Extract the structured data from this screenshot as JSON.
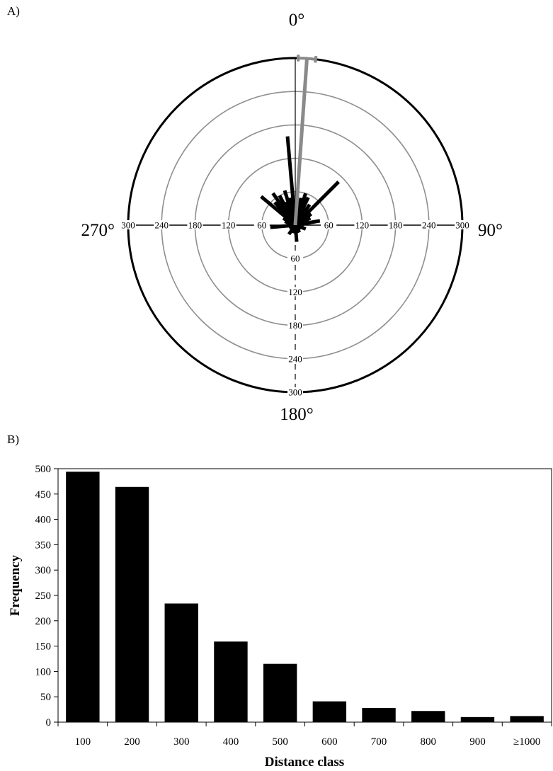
{
  "chart_data": [
    {
      "type": "polar-bar",
      "panel_label": "A)",
      "compass": {
        "north": "0°",
        "east": "90°",
        "south": "180°",
        "west": "270°"
      },
      "radial_max": 300,
      "ring_values": [
        60,
        120,
        180,
        240,
        300
      ],
      "grid": true,
      "bars": [
        {
          "angle": 355,
          "value": 160
        },
        {
          "angle": 5,
          "value": 40
        },
        {
          "angle": 12,
          "value": 50
        },
        {
          "angle": 18,
          "value": 60
        },
        {
          "angle": 25,
          "value": 55
        },
        {
          "angle": 35,
          "value": 45
        },
        {
          "angle": 45,
          "value": 110
        },
        {
          "angle": 55,
          "value": 35
        },
        {
          "angle": 65,
          "value": 30
        },
        {
          "angle": 80,
          "value": 45
        },
        {
          "angle": 95,
          "value": 15
        },
        {
          "angle": 110,
          "value": 20
        },
        {
          "angle": 125,
          "value": 12
        },
        {
          "angle": 150,
          "value": 15
        },
        {
          "angle": 175,
          "value": 30
        },
        {
          "angle": 195,
          "value": 15
        },
        {
          "angle": 215,
          "value": 20
        },
        {
          "angle": 235,
          "value": 12
        },
        {
          "angle": 265,
          "value": 45
        },
        {
          "angle": 290,
          "value": 20
        },
        {
          "angle": 300,
          "value": 25
        },
        {
          "angle": 310,
          "value": 80
        },
        {
          "angle": 318,
          "value": 55
        },
        {
          "angle": 325,
          "value": 70
        },
        {
          "angle": 332,
          "value": 60
        },
        {
          "angle": 338,
          "value": 45
        },
        {
          "angle": 343,
          "value": 65
        },
        {
          "angle": 348,
          "value": 50
        }
      ],
      "mean_vector": {
        "angle": 4,
        "value": 300,
        "error": 3,
        "color": "#8a8a8a"
      }
    },
    {
      "type": "bar",
      "panel_label": "B)",
      "categories": [
        "100",
        "200",
        "300",
        "400",
        "500",
        "600",
        "700",
        "800",
        "900",
        "≥1000"
      ],
      "values": [
        494,
        464,
        234,
        159,
        115,
        41,
        28,
        22,
        10,
        12
      ],
      "xlabel": "Distance class",
      "ylabel": "Frequency",
      "ylim": [
        0,
        500
      ],
      "yticks": [
        0,
        50,
        100,
        150,
        200,
        250,
        300,
        350,
        400,
        450,
        500
      ],
      "bar_color": "#000000",
      "grid": false
    }
  ]
}
